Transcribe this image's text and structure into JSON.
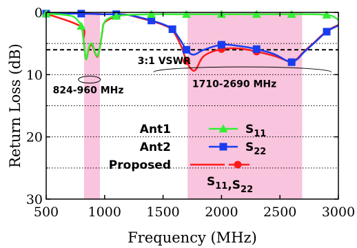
{
  "chart_data": {
    "type": "line",
    "xlabel": "Frequency (MHz)",
    "ylabel": "Return Loss (dB)",
    "xlim": [
      500,
      3000
    ],
    "ylim": [
      0,
      30
    ],
    "y_inverted": true,
    "xticks": [
      500,
      1000,
      1500,
      2000,
      2500,
      3000
    ],
    "yticks": [
      0,
      10,
      20,
      30
    ],
    "grid": "dotted horizontal lines every 5 dB",
    "shaded_bands": [
      {
        "from": 824,
        "to": 960,
        "color": "#f9c4dd"
      },
      {
        "from": 1710,
        "to": 2690,
        "color": "#f9c4dd"
      }
    ],
    "reference_line": {
      "y": 6,
      "style": "dashed",
      "label": "3:1 VSWR"
    },
    "annotations": [
      {
        "text": "824-960 MHz"
      },
      {
        "text": "1710-2690 MHz"
      }
    ],
    "legend": {
      "placement": "lower-right",
      "entries": [
        {
          "name": "Ant1",
          "label_main": "S",
          "label_sub": "11",
          "color": "#33ee33",
          "marker": "triangle"
        },
        {
          "name": "Ant2",
          "label_main": "S",
          "label_sub": "22",
          "color": "#1a3cf0",
          "marker": "square"
        },
        {
          "name": "Proposed",
          "label_parts": [
            {
              "main": "S",
              "sub": "11"
            },
            {
              "main": ",S",
              "sub": "22"
            }
          ],
          "colors": [
            "#ff1a1a",
            "#ff1a1a"
          ],
          "marker": "circle"
        }
      ]
    },
    "series": [
      {
        "name": "Ant1 S11",
        "color": "#33ee33",
        "marker": "triangle",
        "x": [
          500,
          600,
          700,
          750,
          800,
          820,
          840,
          860,
          880,
          900,
          920,
          940,
          960,
          980,
          1000,
          1050,
          1100,
          1200,
          1400,
          1600,
          1800,
          2000,
          2200,
          2400,
          2600,
          2800,
          2900,
          2950,
          3000
        ],
        "y": [
          0.2,
          0.3,
          0.5,
          0.9,
          2.2,
          4.5,
          7.5,
          6.0,
          5.0,
          5.3,
          6.5,
          7.0,
          5.5,
          3.0,
          1.5,
          0.8,
          0.6,
          0.4,
          0.3,
          0.3,
          0.3,
          0.3,
          0.3,
          0.3,
          0.3,
          0.3,
          0.4,
          0.6,
          1.2
        ],
        "marker_x": [
          500,
          800,
          1100,
          1400,
          1700,
          2000,
          2300,
          2600,
          2900
        ]
      },
      {
        "name": "Ant2 S22",
        "color": "#1a3cf0",
        "marker": "square",
        "x": [
          500,
          800,
          1000,
          1100,
          1200,
          1300,
          1400,
          1500,
          1580,
          1650,
          1700,
          1760,
          1850,
          2000,
          2150,
          2300,
          2450,
          2550,
          2600,
          2650,
          2700,
          2800,
          2900,
          3000
        ],
        "y": [
          0.2,
          0.2,
          0.3,
          0.3,
          0.4,
          0.8,
          1.3,
          1.9,
          2.7,
          4.5,
          6.0,
          6.8,
          6.0,
          5.2,
          5.4,
          5.9,
          6.7,
          7.7,
          8.0,
          7.5,
          6.5,
          4.8,
          3.1,
          2.1
        ],
        "marker_x": [
          500,
          800,
          1100,
          1400,
          1580,
          1700,
          2000,
          2300,
          2600,
          2900
        ]
      },
      {
        "name": "Proposed S11",
        "color": "#ff1a1a",
        "marker": "none",
        "x": [
          500,
          800,
          820,
          840,
          860,
          880,
          900,
          920,
          940,
          960,
          980,
          1000,
          1100
        ],
        "y": [
          0.2,
          2.3,
          4.6,
          7.5,
          6.2,
          5.2,
          5.5,
          6.6,
          7.1,
          5.6,
          3.2,
          1.6,
          0.6
        ]
      },
      {
        "name": "Proposed S22",
        "color": "#ff1a1a",
        "marker": "circle",
        "x": [
          500,
          800,
          1000,
          1100,
          1200,
          1300,
          1400,
          1500,
          1580,
          1650,
          1700,
          1740,
          1780,
          1850,
          2000,
          2150,
          2300,
          2450,
          2550,
          2600,
          2650,
          2700,
          2800,
          2900,
          3000
        ],
        "y": [
          0.2,
          0.2,
          0.3,
          0.3,
          0.4,
          0.9,
          1.4,
          2.0,
          2.9,
          5.2,
          7.8,
          9.1,
          9.2,
          7.0,
          5.9,
          5.8,
          6.3,
          7.0,
          7.7,
          8.0,
          7.4,
          6.4,
          4.7,
          3.0,
          2.0
        ],
        "marker_x": [
          1700,
          2000,
          2300,
          2600
        ]
      }
    ]
  }
}
